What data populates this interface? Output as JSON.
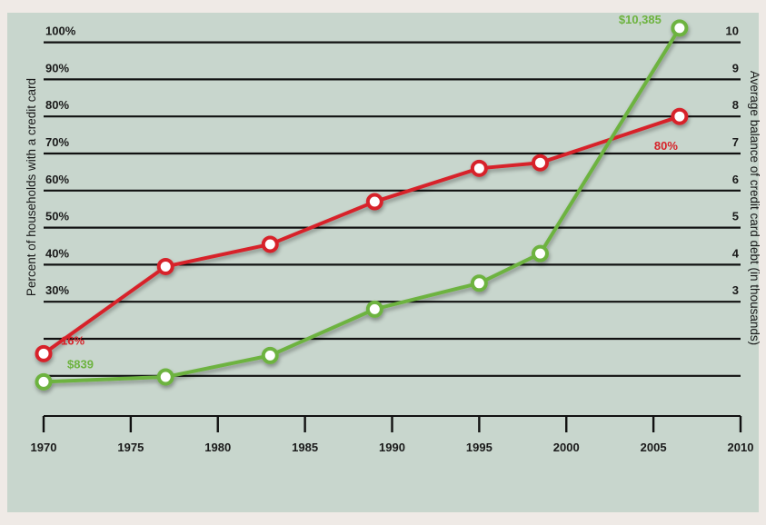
{
  "chart_data": {
    "type": "line",
    "title": "",
    "x_ticks": [
      "1970",
      "1975",
      "1980",
      "1985",
      "1990",
      "1995",
      "2000",
      "2005",
      "2010"
    ],
    "xlim": [
      1970,
      2010
    ],
    "left_axis": {
      "label": "Percent of households with a credit card",
      "tick_labels": [
        "30%",
        "40%",
        "50%",
        "60%",
        "70%",
        "80%",
        "90%",
        "100%"
      ],
      "tick_values": [
        30,
        40,
        50,
        60,
        70,
        80,
        90,
        100
      ]
    },
    "right_axis": {
      "label": "Average balance of credit card debt (in thousands)",
      "tick_labels": [
        "3",
        "4",
        "5",
        "6",
        "7",
        "8",
        "9",
        "10"
      ],
      "tick_values": [
        3,
        4,
        5,
        6,
        7,
        8,
        9,
        10
      ]
    },
    "grid": true,
    "series": [
      {
        "axis": "left",
        "color": "#d7232a",
        "x": [
          1970,
          1977,
          1983,
          1989,
          1995,
          1998.5,
          2006.5
        ],
        "y": [
          16,
          39.5,
          45.5,
          57,
          66,
          67.5,
          80
        ],
        "labels": [
          {
            "index": 0,
            "text": "16%"
          },
          {
            "index": 6,
            "text": "80%"
          }
        ]
      },
      {
        "axis": "right",
        "color": "#6db33f",
        "x": [
          1970,
          1977,
          1983,
          1989,
          1995,
          1998.5,
          2006.5
        ],
        "y": [
          0.84,
          0.97,
          1.55,
          2.8,
          3.5,
          4.3,
          10.385
        ],
        "labels": [
          {
            "index": 0,
            "text": "$839"
          },
          {
            "index": 6,
            "text": "$10,385"
          }
        ]
      }
    ]
  }
}
